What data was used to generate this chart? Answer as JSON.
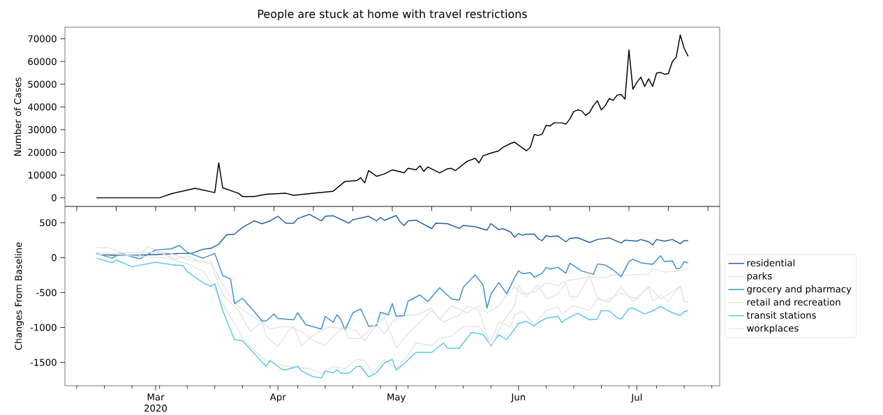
{
  "chart_data": [
    {
      "type": "line",
      "title": "People are stuck at home with travel restrictions",
      "ylabel": "Number of Cases",
      "xlim": [
        "2020-02-07",
        "2020-07-22"
      ],
      "ylim": [
        -3800,
        75100
      ],
      "yticks": [
        0,
        10000,
        20000,
        30000,
        40000,
        50000,
        60000,
        70000
      ],
      "tick_labels": "y",
      "series": [
        {
          "color": "#000000",
          "x": [
            "2020-02-15",
            "2020-03-02",
            "2020-03-05",
            "2020-03-11",
            "2020-03-16",
            "2020-03-17",
            "2020-03-18",
            "2020-03-22",
            "2020-03-23",
            "2020-03-26",
            "2020-03-29",
            "2020-04-03",
            "2020-04-05",
            "2020-04-10",
            "2020-04-15",
            "2020-04-18",
            "2020-04-21",
            "2020-04-22",
            "2020-04-23",
            "2020-04-24",
            "2020-04-26",
            "2020-04-28",
            "2020-04-30",
            "2020-05-03",
            "2020-05-04",
            "2020-05-06",
            "2020-05-07",
            "2020-05-08",
            "2020-05-09",
            "2020-05-12",
            "2020-05-14",
            "2020-05-15",
            "2020-05-16",
            "2020-05-19",
            "2020-05-21",
            "2020-05-22",
            "2020-05-23",
            "2020-05-25",
            "2020-05-27",
            "2020-05-28",
            "2020-05-30",
            "2020-05-31",
            "2020-06-03",
            "2020-06-04",
            "2020-06-05",
            "2020-06-06",
            "2020-06-07",
            "2020-06-08",
            "2020-06-09",
            "2020-06-10",
            "2020-06-12",
            "2020-06-13",
            "2020-06-14",
            "2020-06-15",
            "2020-06-16",
            "2020-06-17",
            "2020-06-18",
            "2020-06-19",
            "2020-06-20",
            "2020-06-21",
            "2020-06-22",
            "2020-06-23",
            "2020-06-24",
            "2020-06-25",
            "2020-06-26",
            "2020-06-27",
            "2020-06-28",
            "2020-06-29",
            "2020-06-30",
            "2020-07-01",
            "2020-07-02",
            "2020-07-03",
            "2020-07-04",
            "2020-07-05",
            "2020-07-06",
            "2020-07-07",
            "2020-07-08",
            "2020-07-09",
            "2020-07-10",
            "2020-07-11",
            "2020-07-12",
            "2020-07-13",
            "2020-07-14"
          ],
          "values": [
            0,
            0,
            1800,
            4200,
            2300,
            15400,
            4400,
            2000,
            600,
            600,
            1600,
            2000,
            1100,
            2000,
            2900,
            7200,
            7600,
            8800,
            6600,
            12000,
            9500,
            10500,
            12300,
            11000,
            13000,
            12300,
            14100,
            11600,
            13600,
            11000,
            12800,
            13000,
            12000,
            16100,
            17400,
            15400,
            18500,
            19700,
            20700,
            22200,
            23900,
            24500,
            20700,
            22200,
            27900,
            27400,
            28100,
            31900,
            31600,
            33000,
            33000,
            32400,
            34700,
            38000,
            38700,
            38300,
            36300,
            37500,
            40600,
            42700,
            38700,
            40600,
            43700,
            42900,
            45200,
            45500,
            43500,
            65100,
            47800,
            50800,
            53100,
            49000,
            52400,
            49000,
            54900,
            55200,
            54400,
            54700,
            60000,
            62000,
            71700,
            65800,
            62300
          ]
        }
      ]
    },
    {
      "type": "line",
      "ylabel": "Changes From Baseline",
      "xlim": [
        "2020-02-07",
        "2020-07-22"
      ],
      "ylim": [
        -1834,
        733
      ],
      "yticks": [
        -1500,
        -1000,
        -500,
        0,
        500
      ],
      "legend": "right",
      "xticks": [
        {
          "value": "2020-03-01",
          "label": "Mar 2020"
        },
        {
          "value": "2020-04-01",
          "label": "Apr"
        },
        {
          "value": "2020-05-01",
          "label": "May"
        },
        {
          "value": "2020-06-01",
          "label": "Jun"
        },
        {
          "value": "2020-07-01",
          "label": "Jul"
        },
        {
          "value": "2020-02-10",
          "label": null
        },
        {
          "value": "2020-02-17",
          "label": null
        },
        {
          "value": "2020-02-24",
          "label": null
        },
        {
          "value": "2020-03-02",
          "label": null
        },
        {
          "value": "2020-03-09",
          "label": null
        },
        {
          "value": "2020-03-16",
          "label": null
        },
        {
          "value": "2020-03-23",
          "label": null
        },
        {
          "value": "2020-03-30",
          "label": null
        },
        {
          "value": "2020-04-06",
          "label": null
        },
        {
          "value": "2020-04-13",
          "label": null
        },
        {
          "value": "2020-04-20",
          "label": null
        },
        {
          "value": "2020-04-27",
          "label": null
        },
        {
          "value": "2020-05-04",
          "label": null
        },
        {
          "value": "2020-05-11",
          "label": null
        },
        {
          "value": "2020-05-18",
          "label": null
        },
        {
          "value": "2020-05-25",
          "label": null
        },
        {
          "value": "2020-06-08",
          "label": null
        },
        {
          "value": "2020-06-15",
          "label": null
        },
        {
          "value": "2020-06-22",
          "label": null
        },
        {
          "value": "2020-06-29",
          "label": null
        },
        {
          "value": "2020-07-06",
          "label": null
        },
        {
          "value": "2020-07-13",
          "label": null
        },
        {
          "value": "2020-07-20",
          "label": null
        }
      ],
      "series": [
        {
          "name": "residential",
          "color": "#1f62a5",
          "x": [
            "2020-02-15",
            "2020-02-19",
            "2020-02-24",
            "2020-03-01",
            "2020-03-07",
            "2020-03-10",
            "2020-03-13",
            "2020-03-15",
            "2020-03-17",
            "2020-03-19",
            "2020-03-21",
            "2020-03-23",
            "2020-03-26",
            "2020-03-28",
            "2020-03-30",
            "2020-04-01",
            "2020-04-03",
            "2020-04-05",
            "2020-04-06",
            "2020-04-09",
            "2020-04-12",
            "2020-04-13",
            "2020-04-15",
            "2020-04-19",
            "2020-04-20",
            "2020-04-24",
            "2020-04-26",
            "2020-04-27",
            "2020-04-28",
            "2020-05-01",
            "2020-05-02",
            "2020-05-03",
            "2020-05-04",
            "2020-05-06",
            "2020-05-10",
            "2020-05-11",
            "2020-05-14",
            "2020-05-17",
            "2020-05-18",
            "2020-05-21",
            "2020-05-24",
            "2020-05-25",
            "2020-05-27",
            "2020-05-28",
            "2020-05-29",
            "2020-05-30",
            "2020-05-31",
            "2020-06-01",
            "2020-06-02",
            "2020-06-03",
            "2020-06-05",
            "2020-06-06",
            "2020-06-07",
            "2020-06-08",
            "2020-06-09",
            "2020-06-11",
            "2020-06-13",
            "2020-06-14",
            "2020-06-16",
            "2020-06-19",
            "2020-06-21",
            "2020-06-24",
            "2020-06-27",
            "2020-06-28",
            "2020-07-01",
            "2020-07-02",
            "2020-07-04",
            "2020-07-05",
            "2020-07-06",
            "2020-07-08",
            "2020-07-10",
            "2020-07-12",
            "2020-07-13",
            "2020-07-14"
          ],
          "values": [
            50,
            33,
            33,
            43,
            60,
            60,
            120,
            133,
            193,
            326,
            336,
            433,
            526,
            486,
            526,
            593,
            493,
            493,
            560,
            620,
            526,
            593,
            600,
            493,
            543,
            593,
            526,
            576,
            533,
            603,
            510,
            460,
            526,
            536,
            416,
            493,
            486,
            420,
            460,
            443,
            393,
            486,
            400,
            416,
            393,
            366,
            293,
            343,
            320,
            336,
            336,
            270,
            243,
            316,
            300,
            310,
            226,
            276,
            286,
            216,
            260,
            283,
            210,
            250,
            236,
            260,
            226,
            183,
            260,
            236,
            260,
            200,
            243,
            243
          ]
        },
        {
          "name": "parks",
          "color": "#e5e5e5",
          "x": [
            "2020-02-15",
            "2020-02-18",
            "2020-02-22",
            "2020-02-25",
            "2020-02-28",
            "2020-03-02",
            "2020-03-06",
            "2020-03-09",
            "2020-03-12",
            "2020-03-15",
            "2020-03-18",
            "2020-03-21",
            "2020-03-25",
            "2020-03-28",
            "2020-03-30",
            "2020-04-02",
            "2020-04-04",
            "2020-04-07",
            "2020-04-10",
            "2020-04-13",
            "2020-04-15",
            "2020-04-18",
            "2020-04-21",
            "2020-04-23",
            "2020-04-26",
            "2020-04-28",
            "2020-04-30",
            "2020-05-03",
            "2020-05-06",
            "2020-05-10",
            "2020-05-12",
            "2020-05-15",
            "2020-05-19",
            "2020-05-22",
            "2020-05-24",
            "2020-05-27",
            "2020-05-30",
            "2020-05-31",
            "2020-06-02",
            "2020-06-05",
            "2020-06-08",
            "2020-06-11",
            "2020-06-12",
            "2020-06-14",
            "2020-06-16",
            "2020-06-19",
            "2020-06-23",
            "2020-06-25",
            "2020-06-27",
            "2020-07-01",
            "2020-07-04",
            "2020-07-05",
            "2020-07-08",
            "2020-07-11",
            "2020-07-13",
            "2020-07-14"
          ],
          "values": [
            143,
            143,
            60,
            -24,
            160,
            76,
            -24,
            26,
            -57,
            -57,
            -390,
            -657,
            -823,
            -924,
            -1023,
            -990,
            -990,
            -1057,
            -1190,
            -1257,
            -1124,
            -990,
            -1057,
            -1190,
            -957,
            -1090,
            -924,
            -823,
            -823,
            -724,
            -890,
            -690,
            -790,
            -690,
            -790,
            -690,
            -457,
            -424,
            -524,
            -490,
            -357,
            -407,
            -357,
            -323,
            -307,
            -273,
            -290,
            -240,
            -257,
            -240,
            -240,
            -157,
            -207,
            -190,
            -174,
            -140
          ]
        },
        {
          "name": "grocery and pharmacy",
          "color": "#3a8fd4",
          "x": [
            "2020-02-15",
            "2020-02-19",
            "2020-02-21",
            "2020-02-26",
            "2020-03-01",
            "2020-03-05",
            "2020-03-07",
            "2020-03-09",
            "2020-03-13",
            "2020-03-16",
            "2020-03-18",
            "2020-03-20",
            "2020-03-21",
            "2020-03-23",
            "2020-03-26",
            "2020-03-28",
            "2020-03-29",
            "2020-03-31",
            "2020-04-01",
            "2020-04-05",
            "2020-04-06",
            "2020-04-08",
            "2020-04-12",
            "2020-04-13",
            "2020-04-15",
            "2020-04-16",
            "2020-04-17",
            "2020-04-18",
            "2020-04-20",
            "2020-04-22",
            "2020-04-24",
            "2020-04-26",
            "2020-04-27",
            "2020-04-29",
            "2020-04-30",
            "2020-05-01",
            "2020-05-03",
            "2020-05-04",
            "2020-05-07",
            "2020-05-09",
            "2020-05-12",
            "2020-05-15",
            "2020-05-17",
            "2020-05-18",
            "2020-05-21",
            "2020-05-23",
            "2020-05-24",
            "2020-05-25",
            "2020-05-27",
            "2020-05-29",
            "2020-05-31",
            "2020-06-01",
            "2020-06-02",
            "2020-06-04",
            "2020-06-05",
            "2020-06-07",
            "2020-06-08",
            "2020-06-09",
            "2020-06-11",
            "2020-06-13",
            "2020-06-14",
            "2020-06-17",
            "2020-06-20",
            "2020-06-21",
            "2020-06-23",
            "2020-06-25",
            "2020-06-27",
            "2020-06-29",
            "2020-06-30",
            "2020-07-02",
            "2020-07-05",
            "2020-07-07",
            "2020-07-08",
            "2020-07-10",
            "2020-07-11",
            "2020-07-12",
            "2020-07-13",
            "2020-07-14"
          ],
          "values": [
            60,
            -7,
            60,
            -17,
            110,
            126,
            176,
            76,
            -7,
            60,
            -257,
            -307,
            -657,
            -583,
            -773,
            -907,
            -907,
            -807,
            -873,
            -890,
            -790,
            -957,
            -1023,
            -840,
            -923,
            -817,
            -890,
            -1040,
            -790,
            -733,
            -983,
            -973,
            -783,
            -817,
            -657,
            -840,
            -830,
            -623,
            -533,
            -630,
            -430,
            -590,
            -607,
            -423,
            -247,
            -390,
            -723,
            -523,
            -357,
            -517,
            -290,
            -190,
            -230,
            -213,
            -280,
            -224,
            -140,
            -164,
            -137,
            -224,
            -80,
            -190,
            -240,
            -90,
            -107,
            -174,
            -273,
            -57,
            -23,
            -74,
            -97,
            26,
            -57,
            -47,
            -157,
            -150,
            -57,
            -73
          ]
        },
        {
          "name": "retail and recreation",
          "color": "#e5e5e5",
          "x": [
            "2020-02-15",
            "2020-02-24",
            "2020-03-04",
            "2020-03-09",
            "2020-03-13",
            "2020-03-16",
            "2020-03-20",
            "2020-03-24",
            "2020-03-29",
            "2020-04-03",
            "2020-04-09",
            "2020-04-12",
            "2020-04-15",
            "2020-04-18",
            "2020-04-21",
            "2020-04-23",
            "2020-04-25",
            "2020-04-28",
            "2020-05-01",
            "2020-05-04",
            "2020-05-06",
            "2020-05-10",
            "2020-05-12",
            "2020-05-15",
            "2020-05-18",
            "2020-05-22",
            "2020-05-25",
            "2020-05-27",
            "2020-05-30",
            "2020-05-31",
            "2020-06-02",
            "2020-06-05",
            "2020-06-08",
            "2020-06-11",
            "2020-06-12",
            "2020-06-15",
            "2020-06-19",
            "2020-06-21",
            "2020-06-23",
            "2020-06-27",
            "2020-07-01",
            "2020-07-04",
            "2020-07-07",
            "2020-07-09",
            "2020-07-12",
            "2020-07-13",
            "2020-07-14"
          ],
          "values": [
            76,
            26,
            -7,
            -90,
            -190,
            -457,
            -857,
            -1223,
            -1473,
            -1557,
            -1590,
            -1657,
            -1557,
            -1590,
            -1457,
            -1473,
            -1657,
            -1457,
            -1590,
            -1390,
            -1223,
            -1257,
            -1157,
            -1124,
            -990,
            -990,
            -1190,
            -924,
            -990,
            -823,
            -773,
            -957,
            -757,
            -707,
            -807,
            -690,
            -757,
            -590,
            -623,
            -507,
            -590,
            -407,
            -590,
            -523,
            -407,
            -623,
            -640
          ]
        },
        {
          "name": "transit stations",
          "color": "#5bc6ec",
          "x": [
            "2020-02-15",
            "2020-02-19",
            "2020-02-20",
            "2020-02-24",
            "2020-03-01",
            "2020-03-05",
            "2020-03-08",
            "2020-03-09",
            "2020-03-13",
            "2020-03-15",
            "2020-03-16",
            "2020-03-18",
            "2020-03-21",
            "2020-03-23",
            "2020-03-29",
            "2020-03-30",
            "2020-04-02",
            "2020-04-03",
            "2020-04-06",
            "2020-04-07",
            "2020-04-10",
            "2020-04-12",
            "2020-04-13",
            "2020-04-15",
            "2020-04-16",
            "2020-04-17",
            "2020-04-19",
            "2020-04-21",
            "2020-04-22",
            "2020-04-24",
            "2020-04-26",
            "2020-04-28",
            "2020-04-30",
            "2020-05-01",
            "2020-05-03",
            "2020-05-06",
            "2020-05-10",
            "2020-05-13",
            "2020-05-14",
            "2020-05-17",
            "2020-05-20",
            "2020-05-23",
            "2020-05-25",
            "2020-05-27",
            "2020-05-29",
            "2020-05-31",
            "2020-06-01",
            "2020-06-03",
            "2020-06-05",
            "2020-06-06",
            "2020-06-08",
            "2020-06-11",
            "2020-06-12",
            "2020-06-13",
            "2020-06-16",
            "2020-06-19",
            "2020-06-21",
            "2020-06-22",
            "2020-06-24",
            "2020-06-26",
            "2020-06-27",
            "2020-06-29",
            "2020-06-30",
            "2020-07-03",
            "2020-07-05",
            "2020-07-07",
            "2020-07-09",
            "2020-07-11",
            "2020-07-12",
            "2020-07-13",
            "2020-07-14"
          ],
          "values": [
            -7,
            -73,
            -34,
            -130,
            -67,
            -100,
            -117,
            -200,
            -357,
            -413,
            -374,
            -757,
            -1173,
            -1190,
            -1557,
            -1473,
            -1600,
            -1607,
            -1557,
            -1623,
            -1707,
            -1723,
            -1623,
            -1650,
            -1607,
            -1657,
            -1657,
            -1557,
            -1557,
            -1707,
            -1650,
            -1507,
            -1457,
            -1613,
            -1517,
            -1357,
            -1357,
            -1223,
            -1297,
            -1297,
            -1073,
            -1097,
            -1257,
            -1107,
            -1173,
            -1023,
            -940,
            -913,
            -983,
            -930,
            -867,
            -840,
            -930,
            -883,
            -797,
            -890,
            -880,
            -757,
            -763,
            -863,
            -880,
            -730,
            -723,
            -807,
            -763,
            -697,
            -763,
            -813,
            -830,
            -773,
            -757
          ]
        },
        {
          "name": "workplaces",
          "color": "#e5e5e5",
          "x": [
            "2020-02-15",
            "2020-02-24",
            "2020-03-04",
            "2020-03-09",
            "2020-03-15",
            "2020-03-18",
            "2020-03-22",
            "2020-03-25",
            "2020-03-28",
            "2020-03-29",
            "2020-04-01",
            "2020-04-04",
            "2020-04-05",
            "2020-04-07",
            "2020-04-10",
            "2020-04-14",
            "2020-04-18",
            "2020-04-19",
            "2020-04-22",
            "2020-04-25",
            "2020-04-28",
            "2020-05-01",
            "2020-05-04",
            "2020-05-07",
            "2020-05-10",
            "2020-05-13",
            "2020-05-17",
            "2020-05-19",
            "2020-05-22",
            "2020-05-25",
            "2020-05-28",
            "2020-05-31",
            "2020-06-01",
            "2020-06-03",
            "2020-06-06",
            "2020-06-08",
            "2020-06-11",
            "2020-06-13",
            "2020-06-14",
            "2020-06-16",
            "2020-06-19",
            "2020-06-21",
            "2020-06-24",
            "2020-06-27",
            "2020-06-30",
            "2020-07-04",
            "2020-07-05",
            "2020-07-07",
            "2020-07-09",
            "2020-07-12",
            "2020-07-13",
            "2020-07-14"
          ],
          "values": [
            43,
            76,
            76,
            -24,
            -90,
            -523,
            -757,
            -1057,
            -923,
            -1123,
            -1273,
            -1023,
            -990,
            -1257,
            -1107,
            -990,
            -1023,
            -1157,
            -1157,
            -990,
            -857,
            -1290,
            -1090,
            -923,
            -757,
            -923,
            -823,
            -690,
            -757,
            -1290,
            -923,
            -690,
            -390,
            -557,
            -390,
            -590,
            -524,
            -357,
            -557,
            -557,
            -257,
            -574,
            -640,
            -424,
            -624,
            -424,
            -624,
            -540,
            -624,
            -407,
            -623,
            -640
          ]
        }
      ]
    }
  ]
}
